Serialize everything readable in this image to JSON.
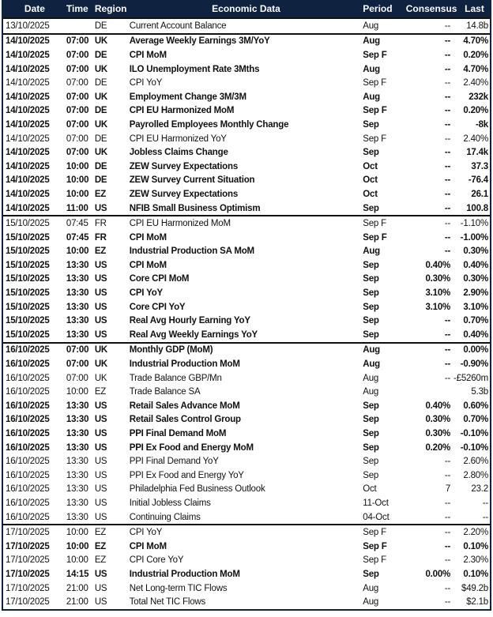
{
  "header": {
    "date": "Date",
    "time": "Time",
    "region": "Region",
    "economic_data": "Economic Data",
    "period": "Period",
    "consensus": "Consensus",
    "last": "Last"
  },
  "groups": [
    {
      "rows": [
        {
          "date": "13/10/2025",
          "time": "",
          "region": "DE",
          "name": "Current Account Balance",
          "period": "Aug",
          "consensus": "--",
          "last": "14.8b",
          "bold": false
        }
      ]
    },
    {
      "rows": [
        {
          "date": "14/10/2025",
          "time": "07:00",
          "region": "UK",
          "name": "Average Weekly Earnings 3M/YoY",
          "period": "Aug",
          "consensus": "--",
          "last": "4.70%",
          "bold": true
        },
        {
          "date": "14/10/2025",
          "time": "07:00",
          "region": "DE",
          "name": "CPI MoM",
          "period": "Sep F",
          "consensus": "--",
          "last": "0.20%",
          "bold": true
        },
        {
          "date": "14/10/2025",
          "time": "07:00",
          "region": "UK",
          "name": "ILO Unemployment Rate 3Mths",
          "period": "Aug",
          "consensus": "--",
          "last": "4.70%",
          "bold": true
        },
        {
          "date": "14/10/2025",
          "time": "07:00",
          "region": "DE",
          "name": "CPI YoY",
          "period": "Sep F",
          "consensus": "--",
          "last": "2.40%",
          "bold": false
        },
        {
          "date": "14/10/2025",
          "time": "07:00",
          "region": "UK",
          "name": "Employment Change 3M/3M",
          "period": "Aug",
          "consensus": "--",
          "last": "232k",
          "bold": true
        },
        {
          "date": "14/10/2025",
          "time": "07:00",
          "region": "DE",
          "name": "CPI EU Harmonized MoM",
          "period": "Sep F",
          "consensus": "--",
          "last": "0.20%",
          "bold": true
        },
        {
          "date": "14/10/2025",
          "time": "07:00",
          "region": "UK",
          "name": "Payrolled Employees Monthly Change",
          "period": "Sep",
          "consensus": "--",
          "last": "-8k",
          "bold": true
        },
        {
          "date": "14/10/2025",
          "time": "07:00",
          "region": "DE",
          "name": "CPI EU Harmonized YoY",
          "period": "Sep F",
          "consensus": "--",
          "last": "2.40%",
          "bold": false
        },
        {
          "date": "14/10/2025",
          "time": "07:00",
          "region": "UK",
          "name": "Jobless Claims Change",
          "period": "Sep",
          "consensus": "--",
          "last": "17.4k",
          "bold": true
        },
        {
          "date": "14/10/2025",
          "time": "10:00",
          "region": "DE",
          "name": "ZEW Survey Expectations",
          "period": "Oct",
          "consensus": "--",
          "last": "37.3",
          "bold": true
        },
        {
          "date": "14/10/2025",
          "time": "10:00",
          "region": "DE",
          "name": "ZEW Survey Current Situation",
          "period": "Oct",
          "consensus": "--",
          "last": "-76.4",
          "bold": true
        },
        {
          "date": "14/10/2025",
          "time": "10:00",
          "region": "EZ",
          "name": "ZEW Survey Expectations",
          "period": "Oct",
          "consensus": "--",
          "last": "26.1",
          "bold": true
        },
        {
          "date": "14/10/2025",
          "time": "11:00",
          "region": "US",
          "name": "NFIB Small Business Optimism",
          "period": "Sep",
          "consensus": "--",
          "last": "100.8",
          "bold": true
        }
      ]
    },
    {
      "rows": [
        {
          "date": "15/10/2025",
          "time": "07:45",
          "region": "FR",
          "name": "CPI EU Harmonized MoM",
          "period": "Sep F",
          "consensus": "--",
          "last": "-1.10%",
          "bold": false
        },
        {
          "date": "15/10/2025",
          "time": "07:45",
          "region": "FR",
          "name": "CPI MoM",
          "period": "Sep F",
          "consensus": "--",
          "last": "-1.00%",
          "bold": true
        },
        {
          "date": "15/10/2025",
          "time": "10:00",
          "region": "EZ",
          "name": "Industrial Production SA MoM",
          "period": "Aug",
          "consensus": "--",
          "last": "0.30%",
          "bold": true
        },
        {
          "date": "15/10/2025",
          "time": "13:30",
          "region": "US",
          "name": "CPI MoM",
          "period": "Sep",
          "consensus": "0.40%",
          "last": "0.40%",
          "bold": true
        },
        {
          "date": "15/10/2025",
          "time": "13:30",
          "region": "US",
          "name": "Core CPI MoM",
          "period": "Sep",
          "consensus": "0.30%",
          "last": "0.30%",
          "bold": true
        },
        {
          "date": "15/10/2025",
          "time": "13:30",
          "region": "US",
          "name": "CPI YoY",
          "period": "Sep",
          "consensus": "3.10%",
          "last": "2.90%",
          "bold": true
        },
        {
          "date": "15/10/2025",
          "time": "13:30",
          "region": "US",
          "name": "Core CPI YoY",
          "period": "Sep",
          "consensus": "3.10%",
          "last": "3.10%",
          "bold": true
        },
        {
          "date": "15/10/2025",
          "time": "13:30",
          "region": "US",
          "name": "Real Avg Hourly Earning YoY",
          "period": "Sep",
          "consensus": "--",
          "last": "0.70%",
          "bold": true
        },
        {
          "date": "15/10/2025",
          "time": "13:30",
          "region": "US",
          "name": "Real Avg Weekly Earnings YoY",
          "period": "Sep",
          "consensus": "--",
          "last": "0.40%",
          "bold": true
        }
      ]
    },
    {
      "rows": [
        {
          "date": "16/10/2025",
          "time": "07:00",
          "region": "UK",
          "name": "Monthly GDP (MoM)",
          "period": "Aug",
          "consensus": "--",
          "last": "0.00%",
          "bold": true
        },
        {
          "date": "16/10/2025",
          "time": "07:00",
          "region": "UK",
          "name": "Industrial Production MoM",
          "period": "Aug",
          "consensus": "--",
          "last": "-0.90%",
          "bold": true
        },
        {
          "date": "16/10/2025",
          "time": "07:00",
          "region": "UK",
          "name": "Trade Balance GBP/Mn",
          "period": "Aug",
          "consensus": "--",
          "last": "-£5260m",
          "bold": false
        },
        {
          "date": "16/10/2025",
          "time": "10:00",
          "region": "EZ",
          "name": "Trade Balance SA",
          "period": "Aug",
          "consensus": "",
          "last": "5.3b",
          "bold": false
        },
        {
          "date": "16/10/2025",
          "time": "13:30",
          "region": "US",
          "name": "Retail Sales Advance MoM",
          "period": "Sep",
          "consensus": "0.40%",
          "last": "0.60%",
          "bold": true
        },
        {
          "date": "16/10/2025",
          "time": "13:30",
          "region": "US",
          "name": "Retail Sales Control Group",
          "period": "Sep",
          "consensus": "0.30%",
          "last": "0.70%",
          "bold": true
        },
        {
          "date": "16/10/2025",
          "time": "13:30",
          "region": "US",
          "name": "PPI Final Demand MoM",
          "period": "Sep",
          "consensus": "0.30%",
          "last": "-0.10%",
          "bold": true
        },
        {
          "date": "16/10/2025",
          "time": "13:30",
          "region": "US",
          "name": "PPI Ex Food and Energy MoM",
          "period": "Sep",
          "consensus": "0.20%",
          "last": "-0.10%",
          "bold": true
        },
        {
          "date": "16/10/2025",
          "time": "13:30",
          "region": "US",
          "name": "PPI Final Demand YoY",
          "period": "Sep",
          "consensus": "--",
          "last": "2.60%",
          "bold": false
        },
        {
          "date": "16/10/2025",
          "time": "13:30",
          "region": "US",
          "name": "PPI Ex Food and Energy YoY",
          "period": "Sep",
          "consensus": "--",
          "last": "2.80%",
          "bold": false
        },
        {
          "date": "16/10/2025",
          "time": "13:30",
          "region": "US",
          "name": "Philadelphia Fed Business Outlook",
          "period": "Oct",
          "consensus": "7",
          "last": "23.2",
          "bold": false
        },
        {
          "date": "16/10/2025",
          "time": "13:30",
          "region": "US",
          "name": "Initial Jobless Claims",
          "period": "11-Oct",
          "consensus": "--",
          "last": "--",
          "bold": false
        },
        {
          "date": "16/10/2025",
          "time": "13:30",
          "region": "US",
          "name": "Continuing Claims",
          "period": "04-Oct",
          "consensus": "--",
          "last": "--",
          "bold": false
        }
      ]
    },
    {
      "rows": [
        {
          "date": "17/10/2025",
          "time": "10:00",
          "region": "EZ",
          "name": "CPI YoY",
          "period": "Sep F",
          "consensus": "--",
          "last": "2.20%",
          "bold": false
        },
        {
          "date": "17/10/2025",
          "time": "10:00",
          "region": "EZ",
          "name": "CPI MoM",
          "period": "Sep F",
          "consensus": "--",
          "last": "0.10%",
          "bold": true
        },
        {
          "date": "17/10/2025",
          "time": "10:00",
          "region": "EZ",
          "name": "CPI Core YoY",
          "period": "Sep F",
          "consensus": "--",
          "last": "2.30%",
          "bold": false
        },
        {
          "date": "17/10/2025",
          "time": "14:15",
          "region": "US",
          "name": "Industrial Production MoM",
          "period": "Sep",
          "consensus": "0.00%",
          "last": "0.10%",
          "bold": true
        },
        {
          "date": "17/10/2025",
          "time": "21:00",
          "region": "US",
          "name": "Net Long-term TIC Flows",
          "period": "Aug",
          "consensus": "--",
          "last": "$49.2b",
          "bold": false
        },
        {
          "date": "17/10/2025",
          "time": "21:00",
          "region": "US",
          "name": "Total Net TIC Flows",
          "period": "Aug",
          "consensus": "--",
          "last": "$2.1b",
          "bold": false
        }
      ]
    }
  ]
}
